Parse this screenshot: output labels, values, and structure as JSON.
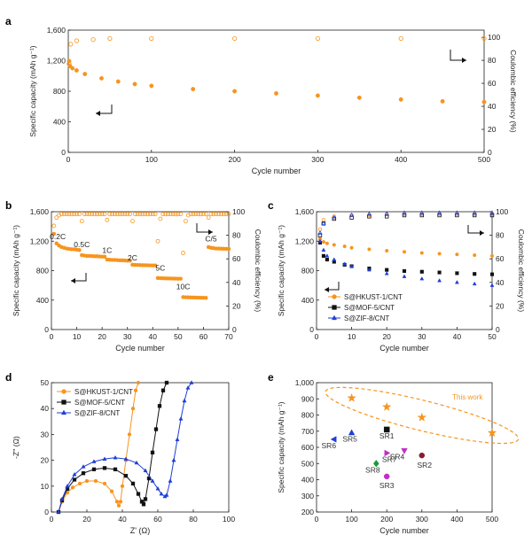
{
  "colors": {
    "orange": "#f7941d",
    "black": "#111111",
    "blue": "#1f3fd6",
    "open_orange": "#f7b35a",
    "magenta": "#c12fc7",
    "green": "#1a9a3a",
    "darkred": "#8b1a2e"
  },
  "chart_data": [
    {
      "panel": "a",
      "type": "scatter",
      "xlabel": "Cycle number",
      "ylabel": "Specific capacity (mAh g⁻¹)",
      "y2label": "Coulombic efficiency (%)",
      "xlim": [
        0,
        500
      ],
      "ylim": [
        0,
        1700
      ],
      "y2lim": [
        0,
        106.25
      ],
      "xticks": [
        "0",
        "100",
        "200",
        "300",
        "400",
        "500"
      ],
      "yticks": [
        "0",
        "400",
        "800",
        "1,200",
        "1,600"
      ],
      "y2ticks": [
        "0",
        "20",
        "40",
        "60",
        "80",
        "100"
      ],
      "series": [
        {
          "axis": "left",
          "marker": "filled-circle",
          "color": "orange",
          "x": [
            1,
            2,
            5,
            10,
            20,
            40,
            60,
            80,
            100,
            150,
            200,
            250,
            300,
            350,
            400,
            450,
            500
          ],
          "y": [
            1270,
            1200,
            1170,
            1140,
            1090,
            1030,
            985,
            950,
            925,
            880,
            850,
            820,
            790,
            760,
            735,
            710,
            700
          ]
        },
        {
          "axis": "right",
          "marker": "open-circle",
          "color": "orange",
          "x": [
            1,
            3,
            10,
            30,
            50,
            100,
            200,
            300,
            400,
            500
          ],
          "y": [
            77,
            94,
            97,
            98,
            99,
            99,
            99,
            99,
            99,
            99
          ]
        }
      ]
    },
    {
      "panel": "b",
      "type": "scatter",
      "xlabel": "Cycle number",
      "ylabel": "Specific capacity (mAh g⁻¹)",
      "y2label": "Coulombic efficiency (%)",
      "xlim": [
        0,
        70
      ],
      "ylim": [
        0,
        1600
      ],
      "y2lim": [
        0,
        100
      ],
      "xticks": [
        "0",
        "10",
        "20",
        "30",
        "40",
        "50",
        "60",
        "70"
      ],
      "yticks": [
        "0",
        "400",
        "800",
        "1,200",
        "1,600"
      ],
      "y2ticks": [
        "0",
        "20",
        "40",
        "60",
        "80",
        "100"
      ],
      "rate_labels": [
        {
          "text": "0.2C",
          "x": 2.5,
          "y": 1230
        },
        {
          "text": "0.5C",
          "x": 12,
          "y": 1120
        },
        {
          "text": "1C",
          "x": 22,
          "y": 1040
        },
        {
          "text": "2C",
          "x": 32,
          "y": 940
        },
        {
          "text": "5C",
          "x": 43,
          "y": 800
        },
        {
          "text": "10C",
          "x": 52,
          "y": 550
        },
        {
          "text": "C/5",
          "x": 63,
          "y": 1200
        }
      ],
      "series": [
        {
          "axis": "left",
          "marker": "filled-circle",
          "color": "orange",
          "x": [
            1,
            2,
            3,
            4,
            5,
            6,
            7,
            8,
            9,
            10,
            11,
            12,
            13,
            14,
            15,
            16,
            17,
            18,
            19,
            20,
            21,
            22,
            23,
            24,
            25,
            26,
            27,
            28,
            29,
            30,
            31,
            32,
            33,
            34,
            35,
            36,
            37,
            38,
            39,
            40,
            41,
            42,
            43,
            44,
            45,
            46,
            47,
            48,
            49,
            50,
            51,
            52,
            53,
            54,
            55,
            56,
            57,
            58,
            59,
            60,
            61,
            62,
            63,
            64,
            65,
            66,
            67,
            68,
            69,
            70
          ],
          "y": [
            1300,
            1170,
            1140,
            1120,
            1110,
            1100,
            1095,
            1090,
            1090,
            1085,
            1080,
            1010,
            1005,
            1000,
            1000,
            998,
            995,
            995,
            992,
            990,
            990,
            950,
            948,
            945,
            945,
            943,
            940,
            940,
            938,
            935,
            935,
            880,
            878,
            876,
            875,
            874,
            873,
            872,
            871,
            870,
            870,
            700,
            698,
            696,
            695,
            694,
            693,
            692,
            691,
            690,
            690,
            440,
            438,
            437,
            436,
            435,
            434,
            433,
            432,
            431,
            430,
            1120,
            1110,
            1105,
            1100,
            1100,
            1098,
            1097,
            1096,
            1095
          ]
        },
        {
          "axis": "right",
          "marker": "open-circle",
          "color": "orange",
          "x": [
            1,
            2,
            3,
            4,
            5,
            6,
            7,
            8,
            9,
            10,
            11,
            12,
            13,
            14,
            15,
            16,
            17,
            18,
            19,
            20,
            21,
            22,
            23,
            24,
            25,
            26,
            27,
            28,
            29,
            30,
            31,
            32,
            33,
            34,
            35,
            36,
            37,
            38,
            39,
            40,
            41,
            42,
            43,
            44,
            45,
            46,
            47,
            48,
            49,
            50,
            51,
            52,
            53,
            54,
            55,
            56,
            57,
            58,
            59,
            60,
            61,
            62,
            63,
            64,
            65,
            66,
            67,
            68,
            69,
            70
          ],
          "y": [
            88,
            95,
            97,
            98,
            98,
            98,
            98,
            98,
            98,
            98,
            98,
            92,
            98,
            98,
            98,
            98,
            98,
            98,
            98,
            98,
            98,
            93,
            98,
            98,
            98,
            98,
            98,
            98,
            98,
            98,
            98,
            92,
            98,
            98,
            98,
            98,
            98,
            98,
            98,
            98,
            98,
            75,
            94,
            98,
            98,
            98,
            98,
            98,
            98,
            98,
            98,
            65,
            92,
            97,
            98,
            98,
            98,
            98,
            98,
            98,
            98,
            95,
            98,
            98,
            98,
            98,
            98,
            98,
            98,
            98
          ]
        }
      ]
    },
    {
      "panel": "c",
      "type": "scatter",
      "xlabel": "Cycle number",
      "ylabel": "Specific capacity (mAh g⁻¹)",
      "y2label": "Coulombic efficiency (%)",
      "xlim": [
        0,
        50
      ],
      "ylim": [
        0,
        1600
      ],
      "y2lim": [
        0,
        100
      ],
      "xticks": [
        "0",
        "10",
        "20",
        "30",
        "40",
        "50"
      ],
      "yticks": [
        "0",
        "400",
        "800",
        "1,200",
        "1,600"
      ],
      "y2ticks": [
        "0",
        "20",
        "40",
        "60",
        "80",
        "100"
      ],
      "legend": "bottom-left",
      "series": [
        {
          "name": "S@HKUST-1/CNT",
          "axis": "left",
          "marker": "filled-circle",
          "color": "orange",
          "x": [
            1,
            2,
            3,
            5,
            8,
            10,
            15,
            20,
            25,
            30,
            35,
            40,
            45,
            50
          ],
          "y": [
            1230,
            1190,
            1170,
            1150,
            1130,
            1110,
            1090,
            1070,
            1055,
            1040,
            1030,
            1020,
            1010,
            1000
          ]
        },
        {
          "name": "S@MOF-5/CNT",
          "axis": "left",
          "marker": "filled-square",
          "color": "black",
          "x": [
            1,
            2,
            3,
            5,
            8,
            10,
            15,
            20,
            25,
            30,
            35,
            40,
            45,
            50
          ],
          "y": [
            1180,
            1000,
            950,
            920,
            880,
            860,
            830,
            810,
            795,
            785,
            775,
            765,
            755,
            750
          ]
        },
        {
          "name": "S@ZIF-8/CNT",
          "axis": "left",
          "marker": "filled-triangle",
          "color": "blue",
          "x": [
            1,
            2,
            3,
            5,
            8,
            10,
            15,
            20,
            25,
            30,
            35,
            40,
            45,
            50
          ],
          "y": [
            1200,
            1080,
            1000,
            950,
            890,
            860,
            810,
            760,
            720,
            690,
            665,
            640,
            620,
            600
          ]
        },
        {
          "axis": "right",
          "marker": "open-circle",
          "color": "orange",
          "x": [
            1,
            2,
            5,
            10,
            15,
            20,
            25,
            30,
            35,
            40,
            45,
            50
          ],
          "y": [
            85,
            93,
            96,
            97,
            97,
            98,
            98,
            98,
            98,
            98,
            98,
            98
          ]
        },
        {
          "axis": "right",
          "marker": "open-square",
          "color": "black",
          "x": [
            1,
            2,
            5,
            10,
            15,
            20,
            25,
            30,
            35,
            40,
            45,
            50
          ],
          "y": [
            80,
            90,
            94,
            95,
            96,
            96,
            97,
            97,
            97,
            97,
            97,
            97
          ]
        },
        {
          "axis": "right",
          "marker": "open-triangle",
          "color": "blue",
          "x": [
            1,
            2,
            5,
            10,
            15,
            20,
            25,
            30,
            35,
            40,
            45,
            50
          ],
          "y": [
            82,
            90,
            95,
            97,
            98,
            98,
            99,
            99,
            99,
            99,
            99,
            99
          ]
        }
      ]
    },
    {
      "panel": "d",
      "type": "line",
      "xlabel": "Z' (Ω)",
      "ylabel": "-Z'' (Ω)",
      "xlim": [
        0,
        100
      ],
      "ylim": [
        0,
        50
      ],
      "xticks": [
        "0",
        "20",
        "40",
        "60",
        "80",
        "100"
      ],
      "yticks": [
        "0",
        "10",
        "20",
        "30",
        "40",
        "50"
      ],
      "legend": "top-left",
      "series": [
        {
          "name": "S@HKUST-1/CNT",
          "marker": "filled-circle",
          "color": "orange",
          "x": [
            4,
            6,
            9,
            12,
            16,
            20,
            25,
            30,
            34,
            37,
            38,
            39,
            40,
            42,
            44,
            46,
            47.5,
            49
          ],
          "y": [
            0,
            4,
            7.5,
            9.5,
            11,
            12,
            12,
            11,
            8,
            4,
            2.5,
            4,
            10,
            20,
            30,
            40,
            47,
            50
          ]
        },
        {
          "name": "S@MOF-5/CNT",
          "marker": "filled-square",
          "color": "black",
          "x": [
            4,
            6,
            9,
            13,
            18,
            24,
            30,
            36,
            42,
            46,
            49,
            51,
            52,
            53,
            55,
            57,
            59,
            61,
            63,
            65
          ],
          "y": [
            0,
            4.5,
            9,
            12.5,
            15,
            16.5,
            17,
            16.5,
            14,
            11,
            7,
            4,
            3,
            5,
            13,
            23,
            32,
            41,
            47,
            50
          ]
        },
        {
          "name": "S@ZIF-8/CNT",
          "marker": "filled-triangle",
          "color": "blue",
          "x": [
            4,
            6,
            9,
            13,
            18,
            24,
            30,
            36,
            42,
            48,
            53,
            57,
            60,
            62,
            64,
            65,
            67,
            69,
            71,
            73,
            75,
            77,
            79
          ],
          "y": [
            0,
            5,
            10,
            14.5,
            17.5,
            19.5,
            20.5,
            21,
            20.5,
            19,
            16,
            12,
            9,
            7,
            6,
            6.5,
            12,
            20,
            28,
            36,
            43,
            48,
            50
          ]
        }
      ]
    },
    {
      "panel": "e",
      "type": "scatter",
      "xlabel": "Cycle number",
      "ylabel": "Specific capacity (mAh g⁻¹)",
      "xlim": [
        0,
        500
      ],
      "ylim": [
        200,
        1000
      ],
      "xticks": [
        "0",
        "100",
        "200",
        "300",
        "400",
        "500"
      ],
      "yticks": [
        "200",
        "300",
        "400",
        "500",
        "600",
        "700",
        "800",
        "900",
        "1,000"
      ],
      "annotation": "This work",
      "this_work": {
        "marker": "star",
        "color": "orange",
        "x": [
          100,
          200,
          300,
          500
        ],
        "y": [
          905,
          850,
          785,
          690
        ]
      },
      "points": [
        {
          "label": "SR1",
          "marker": "square",
          "color": "black",
          "x": 200,
          "y": 710
        },
        {
          "label": "SR2",
          "marker": "circle",
          "color": "darkred",
          "x": 300,
          "y": 550
        },
        {
          "label": "SR3",
          "marker": "circle",
          "color": "magenta",
          "x": 200,
          "y": 420
        },
        {
          "label": "SR4",
          "marker": "triangle-down",
          "color": "magenta",
          "x": 250,
          "y": 580
        },
        {
          "label": "SR5",
          "marker": "triangle-up",
          "color": "blue",
          "x": 100,
          "y": 690
        },
        {
          "label": "SR6",
          "marker": "triangle-left",
          "color": "blue",
          "x": 50,
          "y": 650
        },
        {
          "label": "SR7",
          "marker": "triangle-right",
          "color": "magenta",
          "x": 200,
          "y": 565
        },
        {
          "label": "SR8",
          "marker": "diamond",
          "color": "green",
          "x": 170,
          "y": 500
        }
      ]
    }
  ]
}
